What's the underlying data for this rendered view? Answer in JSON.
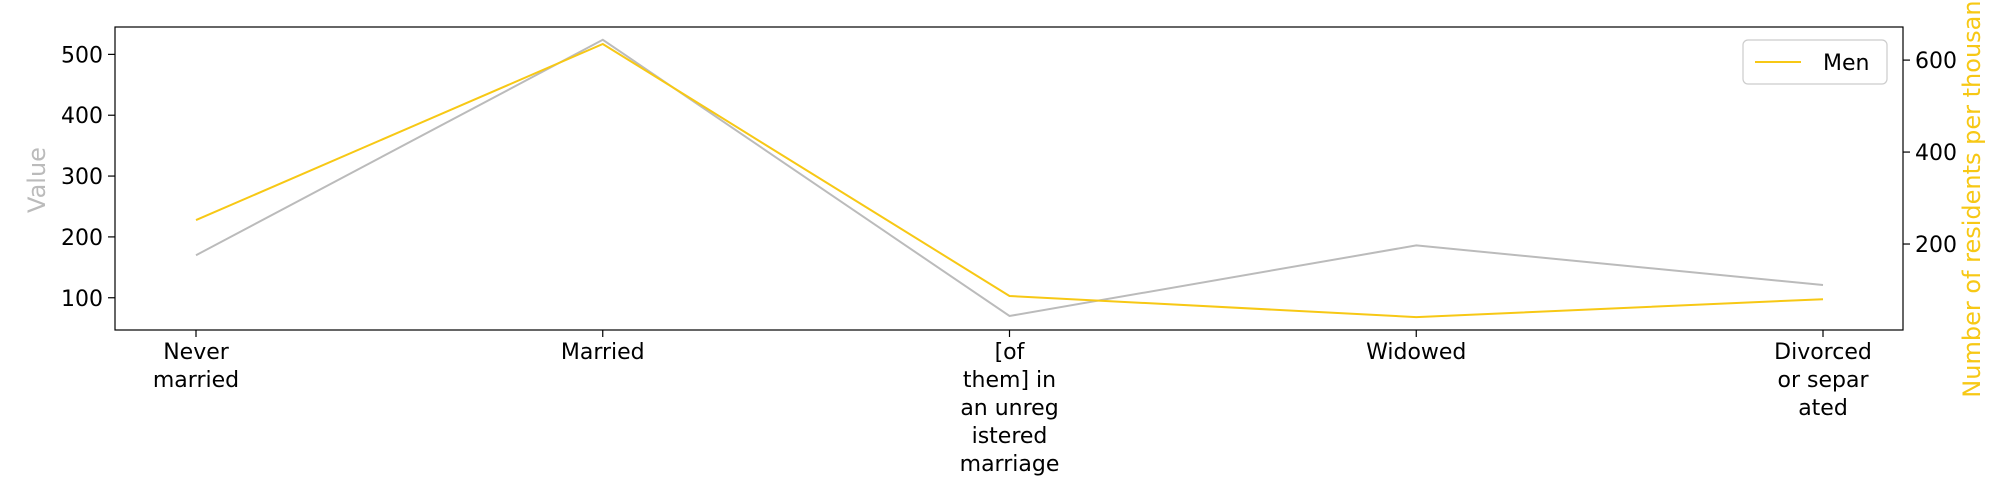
{
  "chart_data": {
    "type": "line",
    "categories": [
      [
        "Never",
        "married"
      ],
      [
        "Married"
      ],
      [
        "[of",
        "them] in",
        "an unreg",
        "istered",
        "marriage"
      ],
      [
        "Widowed"
      ],
      [
        "Divorced",
        "or separ",
        "ated"
      ]
    ],
    "ylabel_left": "Value",
    "ylabel_right": "Number of residents per thousand p",
    "ylim_left": [
      47,
      545
    ],
    "yticks_left": [
      100,
      200,
      300,
      400,
      500
    ],
    "ylim_right": [
      13,
      672
    ],
    "yticks_right": [
      200,
      400,
      600
    ],
    "grid": false,
    "legend": {
      "placement": "top-right",
      "entries": [
        "Men"
      ]
    },
    "series": [
      {
        "axis": "left",
        "color": "#bbbbbb",
        "values": [
          170,
          524,
          70,
          186,
          121
        ]
      },
      {
        "name": "Men",
        "axis": "right",
        "color": "#f7c815",
        "values": [
          252,
          635,
          87,
          41,
          80
        ]
      }
    ]
  }
}
